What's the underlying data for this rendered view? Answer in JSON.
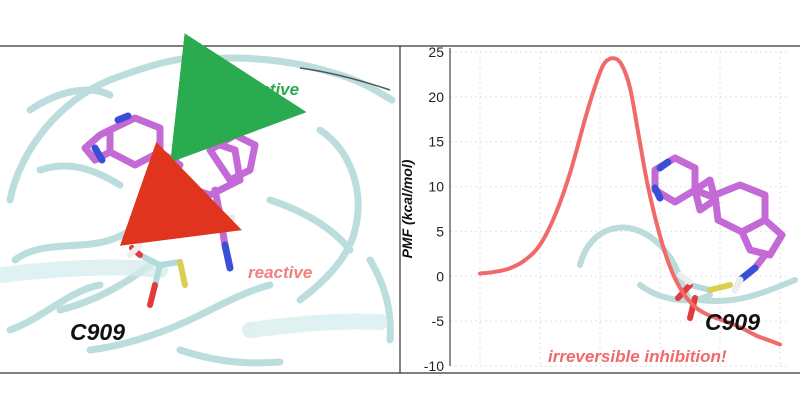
{
  "left_panel": {
    "label_nonreactive": "non-reactive",
    "label_reactive": "reactive",
    "label_residue": "C909",
    "colors": {
      "nonreactive": "#2bab4f",
      "reactive": "#f07f7f",
      "arrow_green": "#2bab4f",
      "arrow_red": "#e0341f"
    }
  },
  "chart_data": {
    "type": "line",
    "ylabel": "PMF (kcal/mol)",
    "xlabel": "",
    "ylim": [
      -10,
      25
    ],
    "yticks": [
      25,
      20,
      15,
      10,
      5,
      0,
      -5,
      -10
    ],
    "grid": true,
    "series": [
      {
        "color": "#f06a6a",
        "x": [
          0.0,
          0.05,
          0.1,
          0.15,
          0.2,
          0.25,
          0.3,
          0.35,
          0.38,
          0.41,
          0.44,
          0.47,
          0.5,
          0.53,
          0.56,
          0.6,
          0.64,
          0.68,
          0.72,
          0.76,
          0.8,
          0.84,
          0.88,
          0.92,
          0.96,
          1.0
        ],
        "y": [
          0.3,
          0.5,
          0.9,
          1.8,
          3.5,
          6.8,
          11.5,
          17.5,
          20.8,
          23.5,
          24.3,
          23.7,
          21.0,
          15.5,
          10.0,
          4.5,
          0.5,
          -2.0,
          -3.5,
          -4.3,
          -4.8,
          -5.3,
          -5.9,
          -6.6,
          -7.1,
          -7.6
        ]
      }
    ],
    "annotations": [
      {
        "text": "C909"
      },
      {
        "text": "irreversible inhibition!"
      }
    ]
  }
}
